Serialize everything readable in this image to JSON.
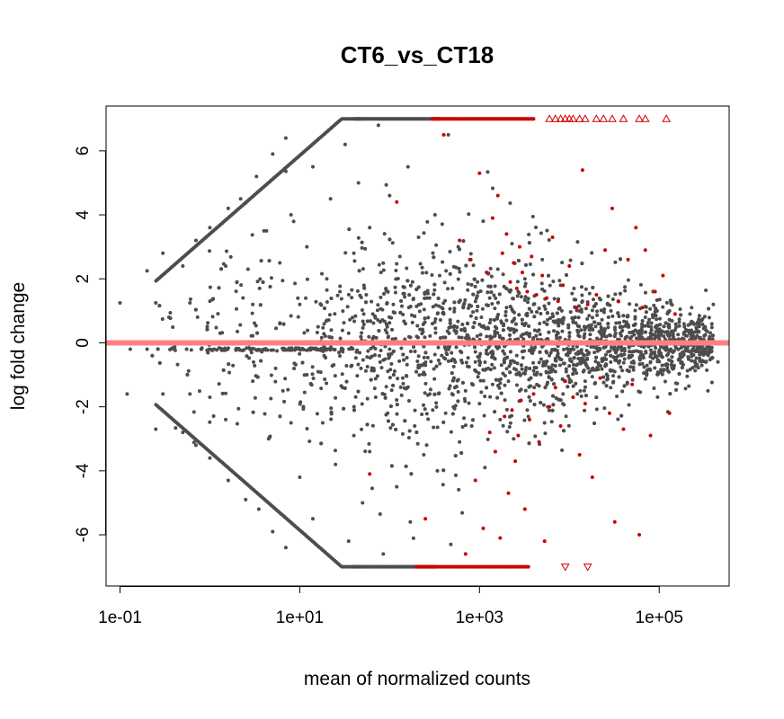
{
  "chart_data": {
    "type": "scatter",
    "title": "CT6_vs_CT18",
    "xlabel": "mean of normalized counts",
    "ylabel": "log fold change",
    "x_scale": "log10",
    "xlim": [
      0.07,
      600000
    ],
    "ylim": [
      -7.6,
      7.4
    ],
    "x_ticks": [
      {
        "value": 0.1,
        "label": "1e-01"
      },
      {
        "value": 10,
        "label": "1e+01"
      },
      {
        "value": 1000,
        "label": "1e+03"
      },
      {
        "value": 100000,
        "label": "1e+05"
      }
    ],
    "y_ticks": [
      {
        "value": -6,
        "label": "-6"
      },
      {
        "value": -4,
        "label": "-4"
      },
      {
        "value": -2,
        "label": "-2"
      },
      {
        "value": 0,
        "label": "0"
      },
      {
        "value": 2,
        "label": "2"
      },
      {
        "value": 4,
        "label": "4"
      },
      {
        "value": 6,
        "label": "6"
      }
    ],
    "reference_line": {
      "y": 0,
      "color": "#ff8080"
    },
    "grid": false,
    "legend": "none",
    "colors": {
      "not_significant": "#4d4d4d",
      "significant": "#cc0000",
      "axis": "#000000"
    },
    "clip_limits": [
      -7,
      7
    ],
    "series": [
      {
        "role": "not_significant",
        "points": [
          [
            0.1,
            1.25
          ],
          [
            0.12,
            -1.6
          ],
          [
            0.13,
            -0.2
          ],
          [
            0.2,
            2.25
          ],
          [
            0.2,
            -0.2
          ],
          [
            0.25,
            1.25
          ],
          [
            0.25,
            -2.7
          ],
          [
            0.3,
            2.8
          ],
          [
            0.3,
            -1.6
          ],
          [
            0.35,
            0.8
          ],
          [
            0.4,
            -0.2
          ],
          [
            0.5,
            2.4
          ],
          [
            0.5,
            -2.8
          ],
          [
            0.6,
            1.25
          ],
          [
            0.6,
            -1.6
          ],
          [
            0.7,
            3.2
          ],
          [
            0.7,
            -3.2
          ],
          [
            0.8,
            -0.2
          ],
          [
            1,
            1.3
          ],
          [
            1,
            -1.7
          ],
          [
            1,
            3.6
          ],
          [
            1,
            -3.6
          ],
          [
            1.3,
            0.3
          ],
          [
            1.5,
            2.4
          ],
          [
            1.5,
            -2.4
          ],
          [
            1.6,
            4.2
          ],
          [
            1.6,
            -4.3
          ],
          [
            2,
            -0.2
          ],
          [
            2,
            1.9
          ],
          [
            2.2,
            4.5
          ],
          [
            2.5,
            -4.9
          ],
          [
            3,
            1.2
          ],
          [
            3,
            -1.2
          ],
          [
            3.3,
            5.2
          ],
          [
            3.5,
            -5.2
          ],
          [
            4,
            3.5
          ],
          [
            4,
            -0.2
          ],
          [
            4.5,
            -3
          ],
          [
            5,
            5.9
          ],
          [
            5,
            -5.9
          ],
          [
            6,
            0.6
          ],
          [
            6,
            2.5
          ],
          [
            6.5,
            -1.5
          ],
          [
            7,
            6.4
          ],
          [
            7,
            -6.4
          ],
          [
            8,
            4
          ],
          [
            8,
            -2.5
          ],
          [
            9,
            -0.2
          ],
          [
            10,
            1.2
          ],
          [
            10,
            -4.2
          ],
          [
            12,
            3
          ],
          [
            12,
            -1
          ],
          [
            14,
            5.5
          ],
          [
            14,
            -5.5
          ],
          [
            16,
            0.5
          ],
          [
            18,
            -2.5
          ],
          [
            20,
            2
          ],
          [
            20,
            -0.2
          ],
          [
            22,
            4.5
          ],
          [
            25,
            -3.8
          ],
          [
            28,
            1.6
          ],
          [
            30,
            -1.4
          ],
          [
            32,
            6.2
          ],
          [
            35,
            0.3
          ],
          [
            35,
            -6.2
          ],
          [
            40,
            2.8
          ],
          [
            40,
            -2.9
          ],
          [
            45,
            5
          ],
          [
            48,
            -0.8
          ],
          [
            50,
            -5
          ],
          [
            55,
            1.5
          ],
          [
            60,
            3.6
          ],
          [
            60,
            -3.4
          ],
          [
            65,
            0.9
          ],
          [
            70,
            -1.7
          ],
          [
            75,
            6.8
          ],
          [
            80,
            2.2
          ],
          [
            85,
            -6.6
          ],
          [
            90,
            0.4
          ],
          [
            95,
            -2.2
          ],
          [
            100,
            4.6
          ],
          [
            100,
            -0.2
          ],
          [
            110,
            1.2
          ],
          [
            120,
            -4.5
          ],
          [
            130,
            2.7
          ],
          [
            140,
            -1.1
          ],
          [
            150,
            0.6
          ],
          [
            160,
            5.5
          ],
          [
            170,
            -5.6
          ],
          [
            180,
            1.9
          ],
          [
            190,
            -2.6
          ],
          [
            200,
            0.2
          ],
          [
            210,
            3.3
          ],
          [
            220,
            -0.7
          ],
          [
            240,
            -3.5
          ],
          [
            260,
            1.4
          ],
          [
            280,
            -1.6
          ],
          [
            300,
            0.6
          ],
          [
            320,
            4
          ],
          [
            340,
            -4
          ],
          [
            360,
            2.1
          ],
          [
            380,
            -0.4
          ],
          [
            400,
            0.9
          ],
          [
            420,
            -2.2
          ],
          [
            450,
            6.5
          ],
          [
            480,
            -6.3
          ],
          [
            500,
            1.7
          ],
          [
            520,
            -1.1
          ],
          [
            550,
            0.3
          ],
          [
            580,
            3
          ],
          [
            600,
            -3.1
          ],
          [
            630,
            -0.3
          ],
          [
            660,
            1.1
          ],
          [
            700,
            -1.5
          ],
          [
            740,
            0.6
          ],
          [
            780,
            2.6
          ],
          [
            820,
            -2.6
          ],
          [
            860,
            0.1
          ],
          [
            900,
            -0.6
          ],
          [
            950,
            1.9
          ],
          [
            1000,
            -1.9
          ],
          [
            1050,
            0.8
          ],
          [
            1100,
            3.8
          ],
          [
            1150,
            -3.9
          ],
          [
            1200,
            0.2
          ],
          [
            1250,
            -0.8
          ],
          [
            1300,
            1.4
          ],
          [
            1400,
            -1.3
          ],
          [
            1500,
            0.5
          ],
          [
            1600,
            2.3
          ],
          [
            1700,
            -2.4
          ],
          [
            1800,
            0.1
          ],
          [
            1900,
            -0.5
          ],
          [
            2000,
            1.1
          ],
          [
            2100,
            -1.2
          ],
          [
            2200,
            0.4
          ],
          [
            2300,
            3.1
          ],
          [
            2400,
            -3
          ],
          [
            2500,
            0.1
          ],
          [
            2600,
            -0.4
          ],
          [
            2700,
            1.6
          ],
          [
            2800,
            -1.5
          ],
          [
            3000,
            0.6
          ],
          [
            3200,
            2
          ],
          [
            3400,
            -2.1
          ],
          [
            3600,
            0.2
          ],
          [
            3800,
            -0.3
          ],
          [
            4000,
            1.2
          ],
          [
            4300,
            -1
          ],
          [
            4600,
            0.4
          ],
          [
            5000,
            2.6
          ],
          [
            5300,
            -2.5
          ],
          [
            5600,
            0.1
          ],
          [
            6000,
            -0.4
          ],
          [
            6500,
            0.9
          ],
          [
            7000,
            -0.9
          ],
          [
            7500,
            0.3
          ],
          [
            8000,
            1.8
          ],
          [
            8500,
            -1.6
          ],
          [
            9000,
            0.1
          ],
          [
            10000,
            -0.3
          ],
          [
            11000,
            0.7
          ],
          [
            12000,
            -0.7
          ],
          [
            13000,
            0.2
          ],
          [
            14000,
            1.3
          ],
          [
            15000,
            -1.2
          ],
          [
            17000,
            0.1
          ],
          [
            19000,
            -0.3
          ],
          [
            21000,
            0.6
          ],
          [
            23000,
            -0.5
          ],
          [
            26000,
            0.2
          ],
          [
            29000,
            1
          ],
          [
            32000,
            -0.9
          ],
          [
            36000,
            0.1
          ],
          [
            40000,
            -0.2
          ],
          [
            45000,
            0.5
          ],
          [
            50000,
            -0.4
          ],
          [
            60000,
            0.2
          ],
          [
            70000,
            0.8
          ],
          [
            80000,
            -0.6
          ],
          [
            100000,
            0.1
          ],
          [
            120000,
            -0.1
          ],
          [
            150000,
            0.4
          ],
          [
            180000,
            -0.3
          ],
          [
            220000,
            0.9
          ],
          [
            260000,
            -0.7
          ],
          [
            320000,
            0.5
          ],
          [
            400000,
            1.2
          ],
          [
            450000,
            -0.6
          ]
        ]
      },
      {
        "role": "significant",
        "points": [
          [
            60,
            -4.1
          ],
          [
            120,
            4.4
          ],
          [
            250,
            -5.5
          ],
          [
            400,
            6.5
          ],
          [
            600,
            3.2
          ],
          [
            700,
            -6.6
          ],
          [
            800,
            2.6
          ],
          [
            900,
            -4.3
          ],
          [
            1000,
            5.3
          ],
          [
            1100,
            -5.8
          ],
          [
            1200,
            2.2
          ],
          [
            1300,
            -2.8
          ],
          [
            1400,
            3.9
          ],
          [
            1500,
            -3.4
          ],
          [
            1600,
            4.6
          ],
          [
            1700,
            -6.1
          ],
          [
            1800,
            2.8
          ],
          [
            1900,
            -2.3
          ],
          [
            2000,
            3.4
          ],
          [
            2100,
            -4.7
          ],
          [
            2200,
            1.9
          ],
          [
            2300,
            -2.1
          ],
          [
            2400,
            2.5
          ],
          [
            2500,
            -3.7
          ],
          [
            2600,
            1.7
          ],
          [
            2700,
            -2.9
          ],
          [
            2800,
            3
          ],
          [
            2900,
            -1.8
          ],
          [
            3000,
            2.2
          ],
          [
            3200,
            -5.2
          ],
          [
            3400,
            1.6
          ],
          [
            3600,
            -2.4
          ],
          [
            3800,
            2.7
          ],
          [
            4000,
            -1.6
          ],
          [
            4300,
            1.5
          ],
          [
            4600,
            -3.1
          ],
          [
            5000,
            2.1
          ],
          [
            5300,
            -6.2
          ],
          [
            5600,
            1.4
          ],
          [
            6000,
            -2
          ],
          [
            6500,
            3.3
          ],
          [
            7000,
            -1.4
          ],
          [
            7500,
            1.3
          ],
          [
            8000,
            -2.6
          ],
          [
            8500,
            1.8
          ],
          [
            9000,
            -1.2
          ],
          [
            10000,
            2.4
          ],
          [
            11000,
            -1.7
          ],
          [
            12000,
            1.1
          ],
          [
            13000,
            -3.5
          ],
          [
            14000,
            5.4
          ],
          [
            15000,
            -1.9
          ],
          [
            16000,
            1.2
          ],
          [
            18000,
            -4.2
          ],
          [
            20000,
            1.5
          ],
          [
            22000,
            -1.1
          ],
          [
            25000,
            2.9
          ],
          [
            28000,
            -2.2
          ],
          [
            30000,
            4.2
          ],
          [
            32000,
            -5.6
          ],
          [
            35000,
            1.3
          ],
          [
            40000,
            -2.7
          ],
          [
            45000,
            2.6
          ],
          [
            50000,
            -1.3
          ],
          [
            55000,
            3.6
          ],
          [
            60000,
            -6
          ],
          [
            65000,
            1.1
          ],
          [
            70000,
            2.9
          ],
          [
            80000,
            -2.9
          ],
          [
            90000,
            1.6
          ],
          [
            110000,
            2.1
          ],
          [
            130000,
            -2.2
          ],
          [
            150000,
            0.9
          ]
        ]
      },
      {
        "role": "clipped_high_not_significant",
        "x_from": 40,
        "x_to": 350,
        "y": 7
      },
      {
        "role": "clipped_low_not_significant",
        "x_from": 40,
        "x_to": 320,
        "y": -7
      },
      {
        "role": "clipped_high_significant",
        "x_from": 300,
        "x_to": 4000,
        "y": 7,
        "triangles": [
          6000,
          7000,
          8000,
          9000,
          10000,
          11000,
          13000,
          15000,
          20000,
          24000,
          30000,
          40000,
          60000,
          70000,
          120000
        ]
      },
      {
        "role": "clipped_low_significant",
        "x_from": 200,
        "x_to": 3500,
        "y": -7,
        "triangles": [
          9000,
          16000
        ]
      }
    ]
  }
}
